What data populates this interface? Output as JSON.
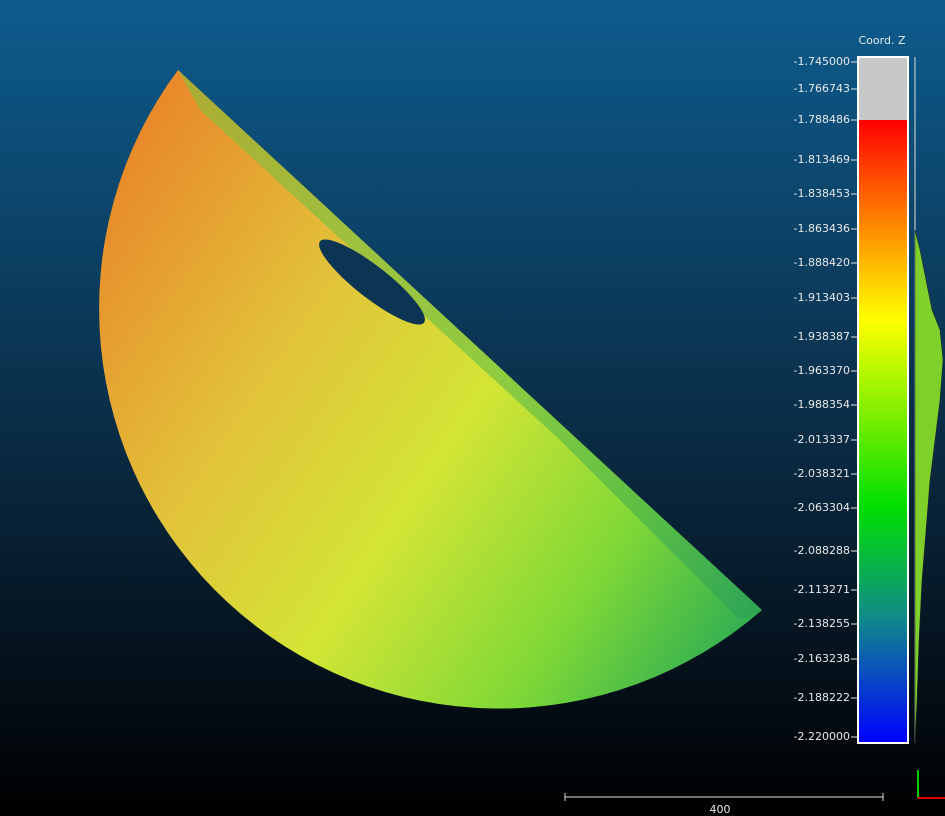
{
  "viewer": {
    "color_scale": {
      "title": "Coord. Z",
      "ticks": [
        "-1.745000",
        "-1.766743",
        "-1.788486",
        "-1.813469",
        "-1.838453",
        "-1.863436",
        "-1.888420",
        "-1.913403",
        "-1.938387",
        "-1.963370",
        "-1.988354",
        "-2.013337",
        "-2.038321",
        "-2.063304",
        "-2.088288",
        "-2.113271",
        "-2.138255",
        "-2.163238",
        "-2.188222",
        "-2.220000"
      ]
    },
    "scale_bar": {
      "label": "400"
    }
  }
}
